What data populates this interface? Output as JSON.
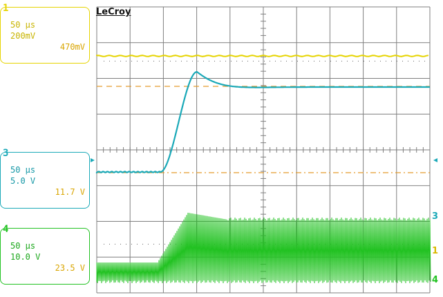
{
  "brand": {
    "logo_text": "LeCroy"
  },
  "channels": [
    {
      "id": "1",
      "timebase": "50 µs",
      "scale": "200mV",
      "offset": "470mV",
      "color": "#e6d400"
    },
    {
      "id": "3",
      "timebase": "50 µs",
      "scale": "5.0 V",
      "offset": "11.7 V",
      "color": "#1aa9b8"
    },
    {
      "id": "4",
      "timebase": "50 µs",
      "scale": "10.0 V",
      "offset": "23.5 V",
      "color": "#22c222"
    }
  ],
  "right_markers": {
    "ch3": "3",
    "ch1": "1",
    "ch4": "4"
  },
  "colors": {
    "grid": "#7f7f7f",
    "reference_line": "#e39a2a",
    "ch1": "#e6d400",
    "ch3": "#1aa9b8",
    "ch4": "#22c222"
  }
}
